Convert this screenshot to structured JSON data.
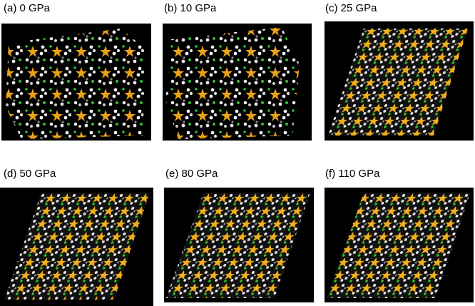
{
  "panels": [
    {
      "label": "(a) 0 GPa"
    },
    {
      "label": "(b) 10 GPa"
    },
    {
      "label": "(c) 25 GPa"
    },
    {
      "label": "(d) 50 GPa"
    },
    {
      "label": "(e) 80 GPa"
    },
    {
      "label": "(f) 110 GPa"
    }
  ]
}
